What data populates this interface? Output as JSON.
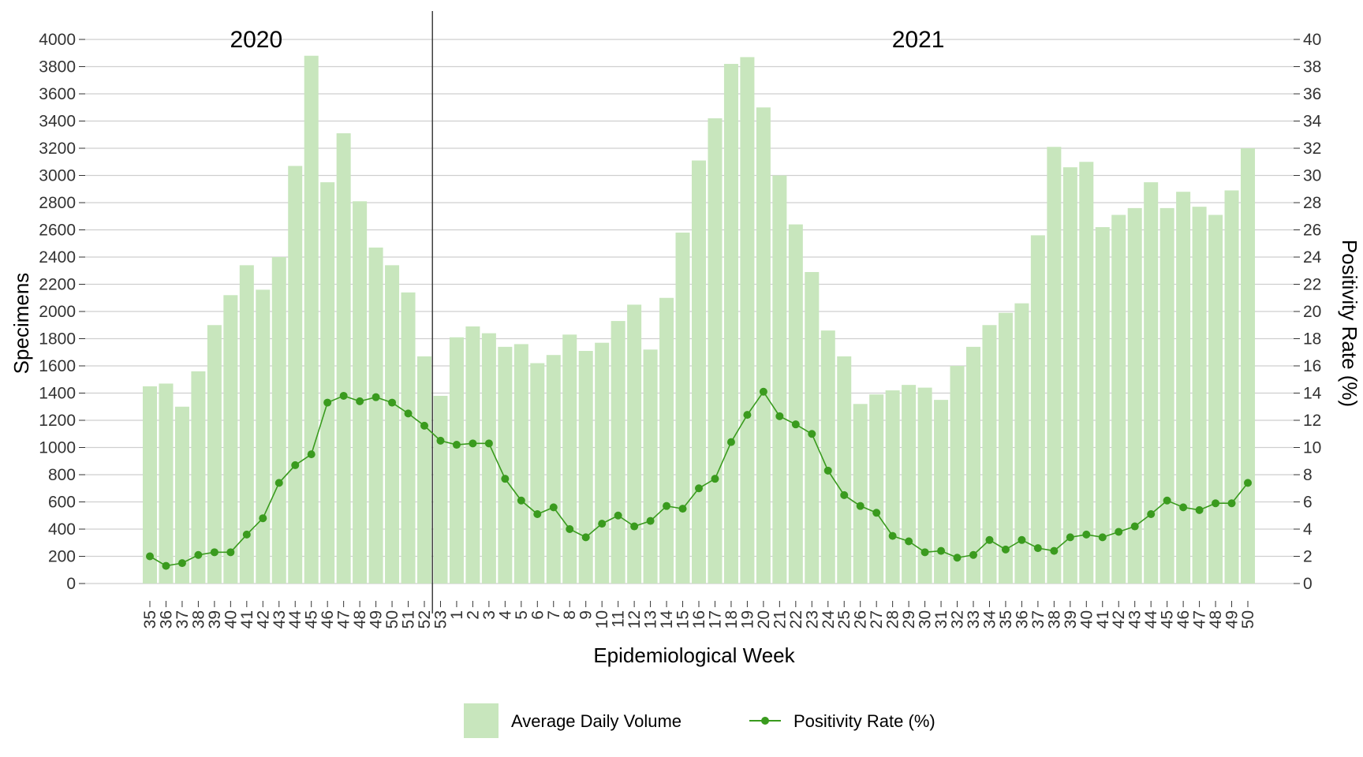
{
  "chart_data": {
    "type": "bar+line",
    "xlabel": "Epidemiological Week",
    "ylabel_left": "Specimens",
    "ylabel_right": "Positivity Rate (%)",
    "ylim_left": [
      0,
      4000
    ],
    "ylim_right": [
      0,
      40
    ],
    "yticks_left": [
      "0",
      "200",
      "400",
      "600",
      "800",
      "1000",
      "1200",
      "1400",
      "1600",
      "1800",
      "2000",
      "2200",
      "2400",
      "2600",
      "2800",
      "3000",
      "3200",
      "3400",
      "3600",
      "3800",
      "4000"
    ],
    "yticks_right": [
      "0",
      "2",
      "4",
      "6",
      "8",
      "10",
      "12",
      "14",
      "16",
      "18",
      "20",
      "22",
      "24",
      "26",
      "28",
      "30",
      "32",
      "34",
      "36",
      "38",
      "40"
    ],
    "grid": true,
    "legend_position": "bottom",
    "year_labels": [
      {
        "text": "2020",
        "center_week_index": 6
      },
      {
        "text": "2021",
        "center_week_index": 47
      }
    ],
    "year_divider_index": 18,
    "categories": [
      "35",
      "36",
      "37",
      "38",
      "39",
      "40",
      "41",
      "42",
      "43",
      "44",
      "45",
      "46",
      "47",
      "48",
      "49",
      "50",
      "51",
      "52",
      "53",
      "1",
      "2",
      "3",
      "4",
      "5",
      "6",
      "7",
      "8",
      "9",
      "10",
      "11",
      "12",
      "13",
      "14",
      "15",
      "16",
      "17",
      "18",
      "19",
      "20",
      "21",
      "22",
      "23",
      "24",
      "25",
      "26",
      "27",
      "28",
      "29",
      "30",
      "31",
      "32",
      "33",
      "34",
      "35",
      "36",
      "37",
      "38",
      "39",
      "40",
      "41",
      "42",
      "43",
      "44",
      "45",
      "46",
      "47",
      "48",
      "49",
      "50"
    ],
    "series": [
      {
        "name": "Average Daily Volume",
        "type": "bar",
        "axis": "left",
        "color": "#c8e6bd",
        "values": [
          1450,
          1470,
          1300,
          1560,
          1900,
          2120,
          2340,
          2160,
          2400,
          3070,
          3880,
          2950,
          3310,
          2810,
          2470,
          2340,
          2140,
          1670,
          1380,
          1810,
          1890,
          1840,
          1740,
          1760,
          1620,
          1680,
          1830,
          1710,
          1770,
          1930,
          2050,
          1720,
          2100,
          2580,
          3110,
          3420,
          3820,
          3870,
          3500,
          3000,
          2640,
          2290,
          1860,
          1670,
          1320,
          1390,
          1420,
          1460,
          1440,
          1350,
          1600,
          1740,
          1900,
          1990,
          2060,
          2560,
          3210,
          3060,
          3100,
          2620,
          2710,
          2760,
          2950,
          2760,
          2880,
          2770,
          2710,
          2890,
          3200
        ]
      },
      {
        "name": "Positivity Rate (%)",
        "type": "line",
        "axis": "right",
        "color": "#3a9b1e",
        "values": [
          2.0,
          1.3,
          1.5,
          2.1,
          2.3,
          2.3,
          3.6,
          4.8,
          7.4,
          8.7,
          9.5,
          13.3,
          13.8,
          13.4,
          13.7,
          13.3,
          12.5,
          11.6,
          10.5,
          10.2,
          10.3,
          10.3,
          7.7,
          6.1,
          5.1,
          5.6,
          4.0,
          3.4,
          4.4,
          5.0,
          4.2,
          4.6,
          5.7,
          5.5,
          7.0,
          7.7,
          10.4,
          12.4,
          14.1,
          12.3,
          11.7,
          11.0,
          8.3,
          6.5,
          5.7,
          5.2,
          3.5,
          3.1,
          2.3,
          2.4,
          1.9,
          2.1,
          3.2,
          2.5,
          3.2,
          2.6,
          2.4,
          3.4,
          3.6,
          3.4,
          3.8,
          4.2,
          5.1,
          6.1,
          5.6,
          5.4,
          5.9,
          5.9,
          7.4
        ]
      }
    ]
  },
  "legend": {
    "bar_label": "Average Daily Volume",
    "line_label": "Positivity Rate (%)"
  }
}
